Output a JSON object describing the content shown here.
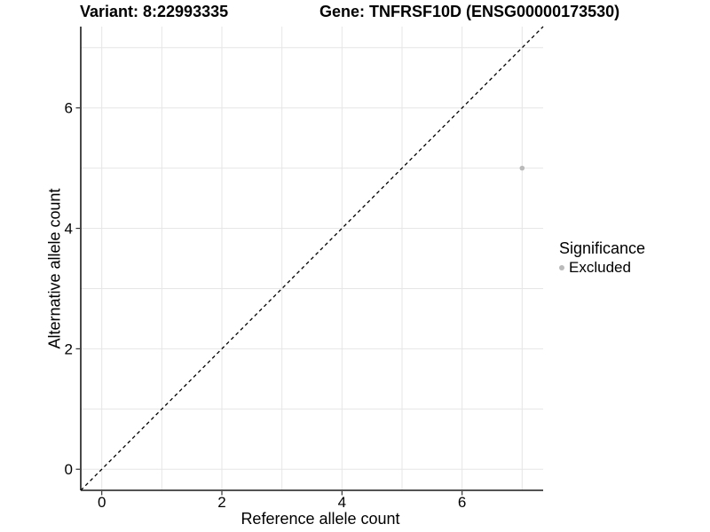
{
  "titles": {
    "variant": "Variant: 8:22993335",
    "gene": "Gene: TNFRSF10D (ENSG00000173530)"
  },
  "axes": {
    "x_label": "Reference allele count",
    "y_label": "Alternative allele count"
  },
  "legend": {
    "title": "Significance",
    "items": [
      {
        "label": "Excluded",
        "marker_color": "#bababa"
      }
    ]
  },
  "chart_data": {
    "type": "scatter",
    "title": "Variant: 8:22993335 | Gene: TNFRSF10D (ENSG00000173530)",
    "xlabel": "Reference allele count",
    "ylabel": "Alternative allele count",
    "xlim": [
      -0.35,
      7.35
    ],
    "ylim": [
      -0.35,
      7.35
    ],
    "x_ticks": [
      0,
      2,
      4,
      6
    ],
    "y_ticks": [
      0,
      2,
      4,
      6
    ],
    "grid_positions": [
      0,
      1,
      2,
      3,
      4,
      5,
      6,
      7
    ],
    "grid": true,
    "legend_position": "right",
    "series": [
      {
        "name": "Excluded",
        "color": "#bababa",
        "points": [
          [
            7,
            5
          ]
        ]
      }
    ],
    "reference_line": {
      "kind": "identity",
      "from": [
        -0.35,
        -0.35
      ],
      "to": [
        7.35,
        7.35
      ],
      "style": "dashed",
      "color": "#000000"
    }
  },
  "style": {
    "grid_color": "#e6e6e6",
    "axis_line_color": "#1a1a1a",
    "tick_mark_color": "#333333",
    "point_color": "#bababa",
    "background": "#ffffff"
  }
}
